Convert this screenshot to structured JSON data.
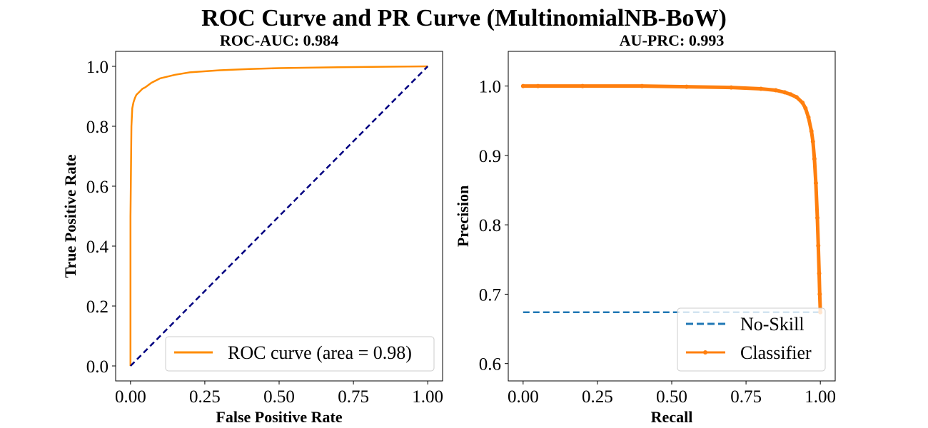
{
  "figure": {
    "suptitle": "ROC Curve and PR Curve (MultinomialNB-BoW)"
  },
  "chart_data": [
    {
      "type": "line",
      "title": "ROC-AUC: 0.984",
      "xlabel": "False Positive Rate",
      "ylabel": "True Positive Rate",
      "xlim": [
        -0.05,
        1.05
      ],
      "ylim": [
        -0.05,
        1.05
      ],
      "xticks": [
        0.0,
        0.25,
        0.5,
        0.75,
        1.0
      ],
      "xtick_labels": [
        "0.00",
        "0.25",
        "0.50",
        "0.75",
        "1.00"
      ],
      "yticks": [
        0.0,
        0.2,
        0.4,
        0.6,
        0.8,
        1.0
      ],
      "ytick_labels": [
        "0.0",
        "0.2",
        "0.4",
        "0.6",
        "0.8",
        "1.0"
      ],
      "grid": false,
      "legend": "lower-right",
      "series": [
        {
          "name": "ROC curve (area = 0.98)",
          "color": "#ff8c00",
          "style": "solid",
          "x": [
            0.0,
            0.0,
            0.003,
            0.006,
            0.01,
            0.015,
            0.02,
            0.03,
            0.04,
            0.05,
            0.07,
            0.1,
            0.15,
            0.2,
            0.3,
            0.4,
            0.5,
            0.7,
            0.9,
            1.0
          ],
          "y": [
            0.0,
            0.5,
            0.8,
            0.86,
            0.88,
            0.895,
            0.905,
            0.915,
            0.925,
            0.93,
            0.945,
            0.96,
            0.972,
            0.98,
            0.987,
            0.991,
            0.994,
            0.997,
            0.999,
            1.0
          ]
        },
        {
          "color": "#000080",
          "style": "dashed",
          "x": [
            0.0,
            1.0
          ],
          "y": [
            0.0,
            1.0
          ]
        }
      ]
    },
    {
      "type": "line",
      "title": "AU-PRC: 0.993",
      "xlabel": "Recall",
      "ylabel": "Precision",
      "xlim": [
        -0.05,
        1.05
      ],
      "ylim": [
        0.575,
        1.05
      ],
      "xticks": [
        0.0,
        0.25,
        0.5,
        0.75,
        1.0
      ],
      "xtick_labels": [
        "0.00",
        "0.25",
        "0.50",
        "0.75",
        "1.00"
      ],
      "yticks": [
        0.6,
        0.7,
        0.8,
        0.9,
        1.0
      ],
      "ytick_labels": [
        "0.6",
        "0.7",
        "0.8",
        "0.9",
        "1.0"
      ],
      "grid": false,
      "legend": "lower-right",
      "series": [
        {
          "name": "No-Skill",
          "color": "#1f77b4",
          "style": "dashed",
          "x": [
            0.0,
            1.0
          ],
          "y": [
            0.674,
            0.674
          ]
        },
        {
          "name": "Classifier",
          "color": "#ff7f0e",
          "style": "solid-marker",
          "x": [
            0.0,
            0.05,
            0.2,
            0.4,
            0.55,
            0.7,
            0.8,
            0.85,
            0.88,
            0.9,
            0.92,
            0.94,
            0.95,
            0.96,
            0.97,
            0.975,
            0.98,
            0.985,
            0.99,
            0.993,
            0.996,
            0.998,
            1.0
          ],
          "y": [
            1.0,
            1.0,
            1.0,
            1.0,
            0.999,
            0.998,
            0.996,
            0.994,
            0.991,
            0.988,
            0.984,
            0.976,
            0.968,
            0.955,
            0.935,
            0.92,
            0.895,
            0.86,
            0.81,
            0.77,
            0.73,
            0.7,
            0.674
          ]
        }
      ]
    }
  ]
}
